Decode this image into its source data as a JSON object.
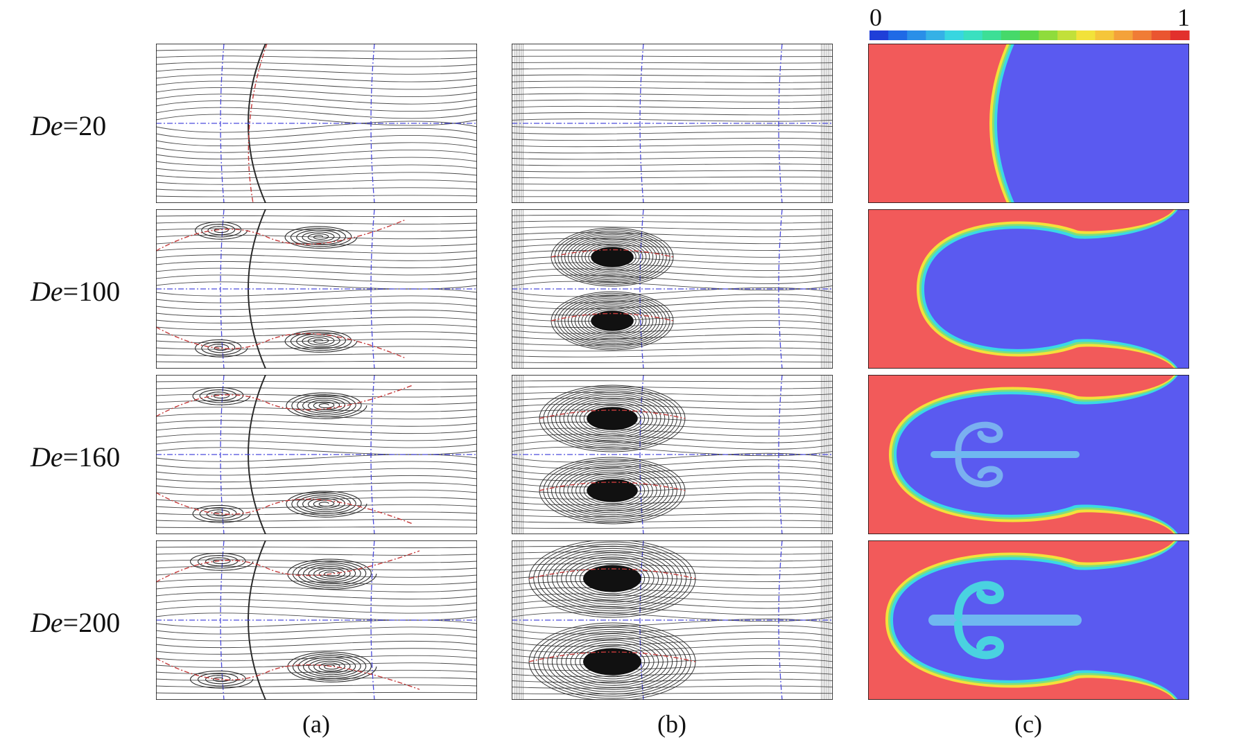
{
  "figure": {
    "rows": [
      {
        "symbol": "De",
        "value": "=20"
      },
      {
        "symbol": "De",
        "value": "=100"
      },
      {
        "symbol": "De",
        "value": "=160"
      },
      {
        "symbol": "De",
        "value": "=200"
      }
    ],
    "columns": [
      {
        "label": "(a)"
      },
      {
        "label": "(b)"
      },
      {
        "label": "(c)"
      }
    ],
    "colorbar": {
      "min_label": "0",
      "max_label": "1",
      "colors": [
        "#1f3fd8",
        "#1f6ae6",
        "#2a8fe8",
        "#35b1e6",
        "#38d6e0",
        "#3ae0c0",
        "#3ddf96",
        "#46d96a",
        "#5cd84a",
        "#8fdc3c",
        "#c2e03a",
        "#f2e23a",
        "#f5c63a",
        "#f4a23a",
        "#f07c36",
        "#ea5530",
        "#e2302c"
      ]
    },
    "palette": {
      "streamline": "#2a2a2a",
      "axis_line": "#4a4adc",
      "nullcline": "#c43a3a",
      "phase_red": "#f25a5a",
      "phase_blue": "#5a5af0",
      "interface_yellow": "#f5e03a",
      "interface_green": "#7fe07a",
      "interface_cyan": "#3ad8e6"
    }
  }
}
